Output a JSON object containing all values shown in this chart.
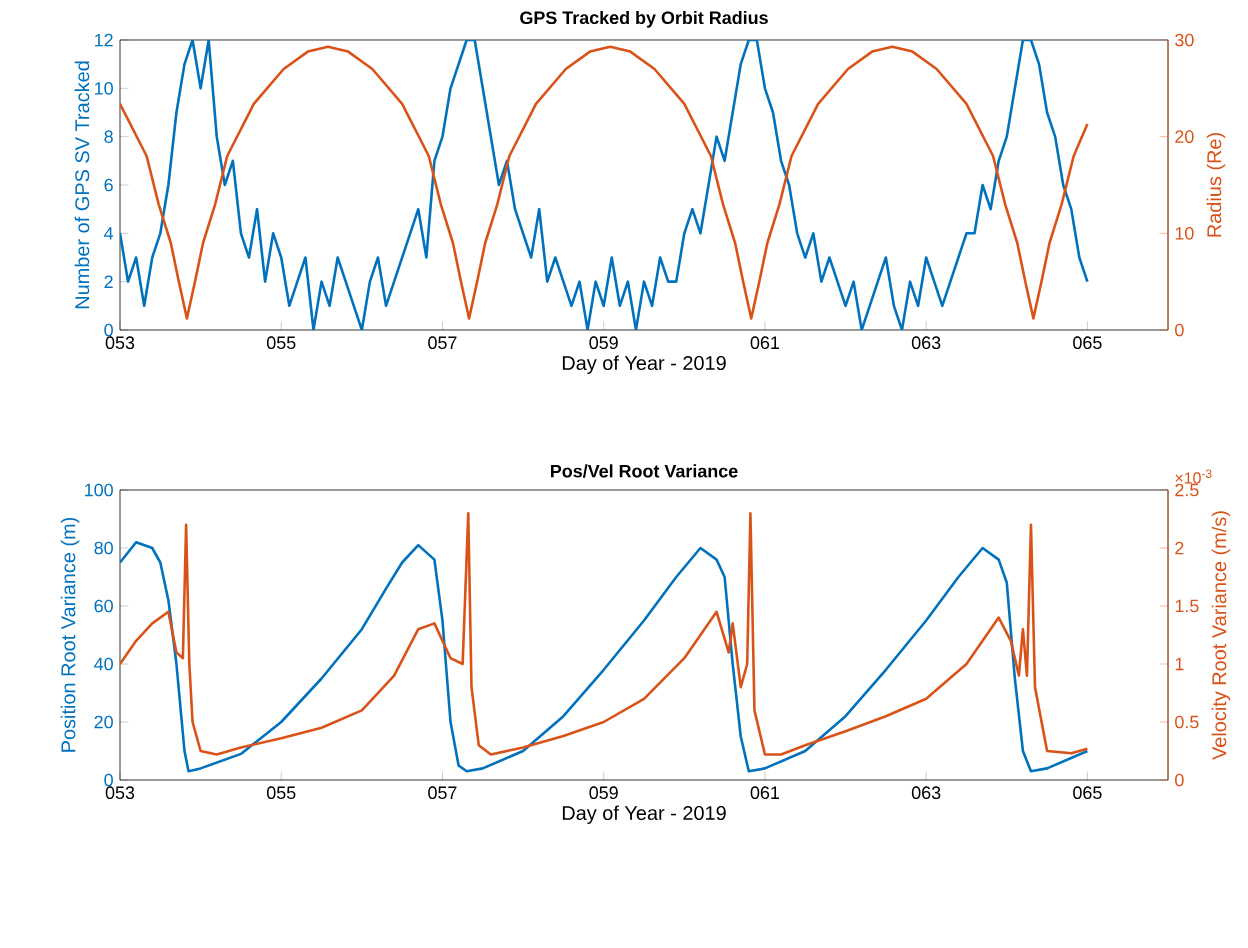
{
  "chart_data": [
    {
      "type": "line",
      "title": "GPS Tracked by Orbit Radius",
      "xlabel": "Day of Year - 2019",
      "ylabel": "Number of GPS SV Tracked",
      "y2label": "Radius (Re)",
      "grid": false,
      "xlim": [
        53,
        66
      ],
      "xticks": [
        {
          "value": 53,
          "label": "053"
        },
        {
          "value": 55,
          "label": "055"
        },
        {
          "value": 57,
          "label": "057"
        },
        {
          "value": 59,
          "label": "059"
        },
        {
          "value": 61,
          "label": "061"
        },
        {
          "value": 63,
          "label": "063"
        },
        {
          "value": 65,
          "label": "065"
        }
      ],
      "ylim": [
        0,
        12
      ],
      "yticks": [
        0,
        2,
        4,
        6,
        8,
        10,
        12
      ],
      "y2lim": [
        0,
        30
      ],
      "y2ticks": [
        0,
        10,
        20,
        30
      ],
      "series": [
        {
          "color": "#0072bd",
          "axis": "y",
          "x": [
            53.0,
            53.1,
            53.2,
            53.3,
            53.4,
            53.5,
            53.6,
            53.7,
            53.8,
            53.9,
            54.0,
            54.1,
            54.2,
            54.3,
            54.4,
            54.5,
            54.6,
            54.7,
            54.8,
            54.9,
            55.0,
            55.1,
            55.2,
            55.3,
            55.4,
            55.5,
            55.6,
            55.7,
            55.8,
            55.9,
            56.0,
            56.1,
            56.2,
            56.3,
            56.4,
            56.5,
            56.6,
            56.7,
            56.8,
            56.9,
            57.0,
            57.1,
            57.2,
            57.3,
            57.4,
            57.5,
            57.6,
            57.7,
            57.8,
            57.9,
            58.0,
            58.1,
            58.2,
            58.3,
            58.4,
            58.5,
            58.6,
            58.7,
            58.8,
            58.9,
            59.0,
            59.1,
            59.2,
            59.3,
            59.4,
            59.5,
            59.6,
            59.7,
            59.8,
            59.9,
            60.0,
            60.1,
            60.2,
            60.3,
            60.4,
            60.5,
            60.6,
            60.7,
            60.8,
            60.9,
            61.0,
            61.1,
            61.2,
            61.3,
            61.4,
            61.5,
            61.6,
            61.7,
            61.8,
            61.9,
            62.0,
            62.1,
            62.2,
            62.3,
            62.4,
            62.5,
            62.6,
            62.7,
            62.8,
            62.9,
            63.0,
            63.1,
            63.2,
            63.3,
            63.4,
            63.5,
            63.6,
            63.7,
            63.8,
            63.9,
            64.0,
            64.1,
            64.2,
            64.3,
            64.4,
            64.5,
            64.6,
            64.7,
            64.8,
            64.9,
            65.0
          ],
          "values": [
            4,
            2,
            3,
            1,
            3,
            4,
            6,
            9,
            11,
            12,
            10,
            12,
            8,
            6,
            7,
            4,
            3,
            5,
            2,
            4,
            3,
            1,
            2,
            3,
            0,
            2,
            1,
            3,
            2,
            1,
            0,
            2,
            3,
            1,
            2,
            3,
            4,
            5,
            3,
            7,
            8,
            10,
            11,
            12,
            12,
            10,
            8,
            6,
            7,
            5,
            4,
            3,
            5,
            2,
            3,
            2,
            1,
            2,
            0,
            2,
            1,
            3,
            1,
            2,
            0,
            2,
            1,
            3,
            2,
            2,
            4,
            5,
            4,
            6,
            8,
            7,
            9,
            11,
            12,
            12,
            10,
            9,
            7,
            6,
            4,
            3,
            4,
            2,
            3,
            2,
            1,
            2,
            0,
            1,
            2,
            3,
            1,
            0,
            2,
            1,
            3,
            2,
            1,
            2,
            3,
            4,
            4,
            6,
            5,
            7,
            8,
            10,
            12,
            12,
            11,
            9,
            8,
            6,
            5,
            3,
            2
          ]
        },
        {
          "color": "#d95319",
          "axis": "y2",
          "x": [
            53.0,
            53.33,
            53.48,
            53.63,
            53.73,
            53.83,
            53.93,
            54.03,
            54.18,
            54.33,
            54.66,
            55.03,
            55.33,
            55.58,
            55.83,
            56.13,
            56.5,
            56.83,
            56.98,
            57.13,
            57.23,
            57.33,
            57.43,
            57.53,
            57.68,
            57.83,
            58.16,
            58.53,
            58.83,
            59.08,
            59.33,
            59.63,
            60.0,
            60.33,
            60.48,
            60.63,
            60.73,
            60.83,
            60.93,
            61.03,
            61.18,
            61.33,
            61.66,
            62.03,
            62.33,
            62.58,
            62.83,
            63.13,
            63.5,
            63.83,
            63.98,
            64.13,
            64.23,
            64.33,
            64.43,
            64.53,
            64.68,
            64.83,
            65.0
          ],
          "values": [
            23.4,
            18,
            13,
            9,
            5,
            1.2,
            5,
            9,
            13,
            18,
            23.4,
            27,
            28.8,
            29.3,
            28.8,
            27,
            23.4,
            18,
            13,
            9,
            5,
            1.2,
            5,
            9,
            13,
            18,
            23.4,
            27,
            28.8,
            29.3,
            28.8,
            27,
            23.4,
            18,
            13,
            9,
            5,
            1.2,
            5,
            9,
            13,
            18,
            23.4,
            27,
            28.8,
            29.3,
            28.8,
            27,
            23.4,
            18,
            13,
            9,
            5,
            1.2,
            5,
            9,
            13,
            18,
            21.3
          ]
        }
      ]
    },
    {
      "type": "line",
      "title": "Pos/Vel Root Variance",
      "xlabel": "Day of Year - 2019",
      "ylabel": "Position Root Variance (m)",
      "y2label": "Velocity Root Variance (m/s)",
      "annotations": [
        "×10$^{-3}$"
      ],
      "grid": false,
      "xlim": [
        53,
        66
      ],
      "xticks": [
        {
          "value": 53,
          "label": "053"
        },
        {
          "value": 55,
          "label": "055"
        },
        {
          "value": 57,
          "label": "057"
        },
        {
          "value": 59,
          "label": "059"
        },
        {
          "value": 61,
          "label": "061"
        },
        {
          "value": 63,
          "label": "063"
        },
        {
          "value": 65,
          "label": "065"
        }
      ],
      "ylim": [
        0,
        100
      ],
      "yticks": [
        0,
        20,
        40,
        60,
        80,
        100
      ],
      "y2lim": [
        0,
        2.5
      ],
      "y2ticks": [
        0,
        0.5,
        1,
        1.5,
        2,
        2.5
      ],
      "series": [
        {
          "color": "#0072bd",
          "axis": "y",
          "x": [
            53.0,
            53.2,
            53.4,
            53.5,
            53.6,
            53.7,
            53.8,
            53.85,
            54.0,
            54.5,
            55.0,
            55.5,
            56.0,
            56.3,
            56.5,
            56.7,
            56.9,
            57.0,
            57.1,
            57.2,
            57.3,
            57.5,
            58.0,
            58.5,
            59.0,
            59.5,
            59.9,
            60.2,
            60.4,
            60.5,
            60.6,
            60.7,
            60.8,
            61.0,
            61.5,
            62.0,
            62.5,
            63.0,
            63.4,
            63.7,
            63.9,
            64.0,
            64.1,
            64.2,
            64.3,
            64.5,
            65.0
          ],
          "values": [
            75,
            82,
            80,
            75,
            62,
            40,
            10,
            3,
            4,
            9,
            20,
            35,
            52,
            66,
            75,
            81,
            76,
            55,
            20,
            5,
            3,
            4,
            10,
            22,
            38,
            55,
            70,
            80,
            76,
            70,
            40,
            15,
            3,
            4,
            10,
            22,
            38,
            55,
            70,
            80,
            76,
            68,
            35,
            10,
            3,
            4,
            10
          ]
        },
        {
          "color": "#d95319",
          "axis": "y2",
          "x": [
            53.0,
            53.2,
            53.4,
            53.6,
            53.7,
            53.78,
            53.82,
            53.86,
            53.9,
            54.0,
            54.2,
            54.5,
            55.0,
            55.5,
            56.0,
            56.4,
            56.7,
            56.9,
            57.1,
            57.25,
            57.32,
            57.36,
            57.45,
            57.6,
            58.0,
            58.5,
            59.0,
            59.5,
            60.0,
            60.4,
            60.55,
            60.6,
            60.7,
            60.78,
            60.82,
            60.87,
            61.0,
            61.2,
            61.5,
            62.0,
            62.5,
            63.0,
            63.5,
            63.9,
            64.05,
            64.15,
            64.2,
            64.25,
            64.3,
            64.35,
            64.5,
            64.8,
            65.0
          ],
          "values": [
            1.0,
            1.2,
            1.35,
            1.45,
            1.1,
            1.05,
            2.2,
            1.0,
            0.5,
            0.25,
            0.22,
            0.28,
            0.36,
            0.45,
            0.6,
            0.9,
            1.3,
            1.35,
            1.05,
            1.0,
            2.3,
            0.8,
            0.3,
            0.22,
            0.28,
            0.38,
            0.5,
            0.7,
            1.05,
            1.45,
            1.1,
            1.35,
            0.8,
            1.0,
            2.3,
            0.6,
            0.22,
            0.22,
            0.3,
            0.42,
            0.55,
            0.7,
            1.0,
            1.4,
            1.2,
            0.9,
            1.3,
            0.9,
            2.2,
            0.8,
            0.25,
            0.23,
            0.27
          ]
        }
      ]
    }
  ]
}
